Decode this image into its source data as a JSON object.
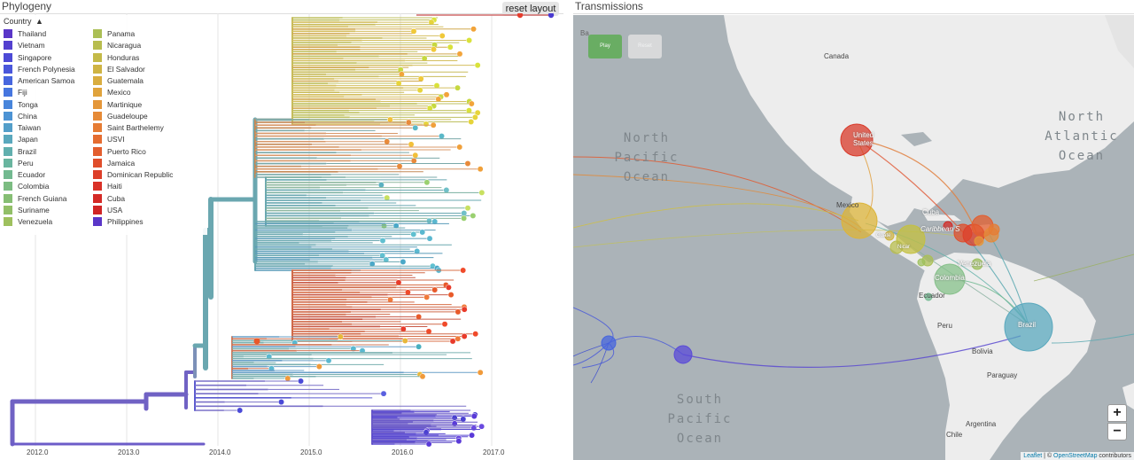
{
  "phylogeny": {
    "title": "Phylogeny",
    "reset_label": "reset layout",
    "legend_header": "Country",
    "legend_col1": [
      {
        "label": "Thailand",
        "color": "#5a36c8"
      },
      {
        "label": "Vietnam",
        "color": "#5340cf"
      },
      {
        "label": "Singapore",
        "color": "#4d4ad6"
      },
      {
        "label": "French Polynesia",
        "color": "#4a57db"
      },
      {
        "label": "American Samoa",
        "color": "#4766de"
      },
      {
        "label": "Fiji",
        "color": "#4676df"
      },
      {
        "label": "Tonga",
        "color": "#4885db"
      },
      {
        "label": "China",
        "color": "#4c93d4"
      },
      {
        "label": "Taiwan",
        "color": "#539ec9"
      },
      {
        "label": "Japan",
        "color": "#5aa8bd"
      },
      {
        "label": "Brazil",
        "color": "#61afae"
      },
      {
        "label": "Peru",
        "color": "#69b59f"
      },
      {
        "label": "Ecuador",
        "color": "#72b990"
      },
      {
        "label": "Colombia",
        "color": "#7cbc82"
      },
      {
        "label": "French Guiana",
        "color": "#86be74"
      },
      {
        "label": "Suriname",
        "color": "#92bf68"
      },
      {
        "label": "Venezuela",
        "color": "#9ec05e"
      }
    ],
    "legend_col2": [
      {
        "label": "Panama",
        "color": "#abbf55"
      },
      {
        "label": "Nicaragua",
        "color": "#b8bd4e"
      },
      {
        "label": "Honduras",
        "color": "#c4ba48"
      },
      {
        "label": "El Salvador",
        "color": "#cfb444"
      },
      {
        "label": "Guatemala",
        "color": "#d9ad40"
      },
      {
        "label": "Mexico",
        "color": "#e0a33c"
      },
      {
        "label": "Martinique",
        "color": "#e4973a"
      },
      {
        "label": "Guadeloupe",
        "color": "#e68a37"
      },
      {
        "label": "Saint Barthelemy",
        "color": "#e67c34"
      },
      {
        "label": "USVI",
        "color": "#e56d31"
      },
      {
        "label": "Puerto Rico",
        "color": "#e35e2e"
      },
      {
        "label": "Jamaica",
        "color": "#e04e2b"
      },
      {
        "label": "Dominican Republic",
        "color": "#dd3f29"
      },
      {
        "label": "Haiti",
        "color": "#d93127"
      },
      {
        "label": "Cuba",
        "color": "#d42a26"
      },
      {
        "label": "USA",
        "color": "#d02525"
      },
      {
        "label": "Philippines",
        "color": "#5a36c8"
      }
    ],
    "axis_labels": [
      "2012.0",
      "2013.0",
      "2014.0",
      "2015.0",
      "2016.0",
      "2017.0"
    ]
  },
  "transmissions": {
    "title": "Transmissions",
    "play_label": "Play",
    "reset_label": "Reset",
    "zoom_in": "+",
    "zoom_out": "−",
    "attribution_leaflet": "Leaflet",
    "attribution_sep": " | © ",
    "attribution_osm": "OpenStreetMap",
    "attribution_tail": " contributors",
    "ocean_labels": {
      "north_pacific": "North\nPacific\nOcean",
      "north_atlantic": "North\nAtlantic\nOcean",
      "south_pacific": "South\nPacific\nOcean"
    },
    "places": {
      "canada": "Canada",
      "united_states": "United\nStates",
      "mexico": "Mexico",
      "cuba": "Cuba",
      "caribbean": "Caribbean S",
      "guatemala": "Guate",
      "nicaragua": "Nicar",
      "venezuela": "Venezuela",
      "colombia": "Colombia",
      "ecuador": "Ecuador",
      "peru": "Peru",
      "brazil": "Brazil",
      "bolivia": "Bolivia",
      "paraguay": "Paraguay",
      "argentina": "Argentina",
      "chile": "Chile",
      "ba": "Ba"
    }
  }
}
